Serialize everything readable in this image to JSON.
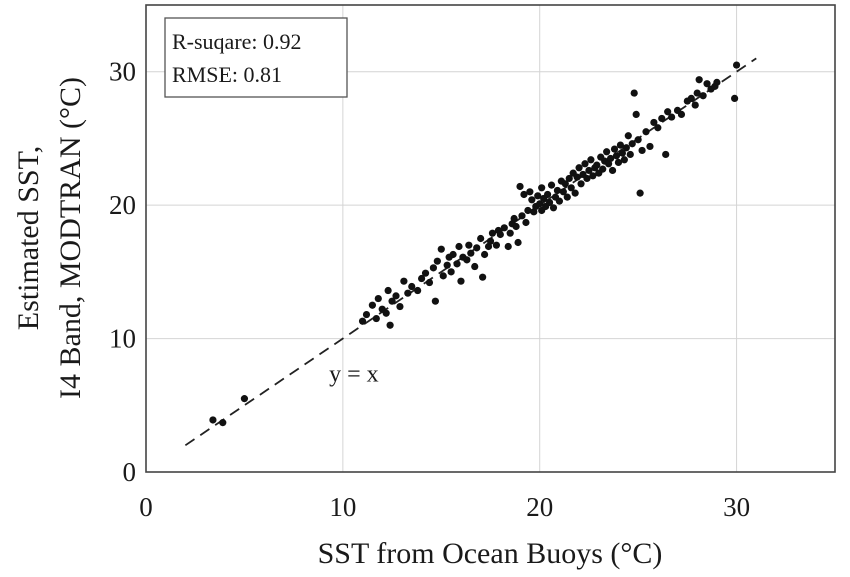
{
  "chart_data": {
    "type": "scatter",
    "xlabel": "SST from Ocean Buoys (°C)",
    "ylabel_lines": [
      "Estimated SST,",
      "I4 Band, MODTRAN (°C)"
    ],
    "xlim": [
      0,
      35
    ],
    "ylim": [
      0,
      35
    ],
    "xticks": [
      "0",
      "10",
      "20",
      "30"
    ],
    "yticks": [
      "0",
      "10",
      "20",
      "30"
    ],
    "xtick_values": [
      0,
      10,
      20,
      30
    ],
    "ytick_values": [
      0,
      10,
      20,
      30
    ],
    "grid": true,
    "stats_box": {
      "placement": "top-left",
      "lines": [
        "R-suqare: 0.92",
        "RMSE: 0.81"
      ]
    },
    "reference_line": {
      "label": "y = x",
      "label_at": [
        9.3,
        6.8
      ],
      "from": [
        2,
        2
      ],
      "to": [
        31,
        31
      ],
      "style": "dashed"
    },
    "marker_color": "#111111",
    "points": [
      [
        3.4,
        3.9
      ],
      [
        3.9,
        3.7
      ],
      [
        5.0,
        5.5
      ],
      [
        11.0,
        11.3
      ],
      [
        11.2,
        11.8
      ],
      [
        11.5,
        12.5
      ],
      [
        11.7,
        11.5
      ],
      [
        11.8,
        13.0
      ],
      [
        12.0,
        12.2
      ],
      [
        12.2,
        11.9
      ],
      [
        12.3,
        13.6
      ],
      [
        12.4,
        11.0
      ],
      [
        12.5,
        12.8
      ],
      [
        12.7,
        13.2
      ],
      [
        12.9,
        12.4
      ],
      [
        13.1,
        14.3
      ],
      [
        13.3,
        13.4
      ],
      [
        13.5,
        13.9
      ],
      [
        13.8,
        13.6
      ],
      [
        14.0,
        14.5
      ],
      [
        14.2,
        14.9
      ],
      [
        14.4,
        14.2
      ],
      [
        14.6,
        15.3
      ],
      [
        14.7,
        12.8
      ],
      [
        14.8,
        15.8
      ],
      [
        15.0,
        16.7
      ],
      [
        15.1,
        14.7
      ],
      [
        15.3,
        15.5
      ],
      [
        15.4,
        16.1
      ],
      [
        15.5,
        15.0
      ],
      [
        15.6,
        16.3
      ],
      [
        15.8,
        15.6
      ],
      [
        15.9,
        16.9
      ],
      [
        16.0,
        14.3
      ],
      [
        16.1,
        16.1
      ],
      [
        16.3,
        15.9
      ],
      [
        16.4,
        17.0
      ],
      [
        16.5,
        16.4
      ],
      [
        16.7,
        15.4
      ],
      [
        16.8,
        16.8
      ],
      [
        17.0,
        17.5
      ],
      [
        17.1,
        14.6
      ],
      [
        17.2,
        16.3
      ],
      [
        17.4,
        16.9
      ],
      [
        17.5,
        17.3
      ],
      [
        17.6,
        17.9
      ],
      [
        17.8,
        17.0
      ],
      [
        17.9,
        18.1
      ],
      [
        18.0,
        17.8
      ],
      [
        18.2,
        18.3
      ],
      [
        18.4,
        16.9
      ],
      [
        18.5,
        17.9
      ],
      [
        18.6,
        18.6
      ],
      [
        18.7,
        19.0
      ],
      [
        18.8,
        18.4
      ],
      [
        18.9,
        17.2
      ],
      [
        19.0,
        21.4
      ],
      [
        19.1,
        19.2
      ],
      [
        19.2,
        20.8
      ],
      [
        19.3,
        18.7
      ],
      [
        19.4,
        19.6
      ],
      [
        19.5,
        21.0
      ],
      [
        19.6,
        20.4
      ],
      [
        19.7,
        19.5
      ],
      [
        19.8,
        19.9
      ],
      [
        19.9,
        20.7
      ],
      [
        20.0,
        20.1
      ],
      [
        20.1,
        19.6
      ],
      [
        20.1,
        21.3
      ],
      [
        20.2,
        20.5
      ],
      [
        20.3,
        19.9
      ],
      [
        20.4,
        20.8
      ],
      [
        20.5,
        20.2
      ],
      [
        20.6,
        21.5
      ],
      [
        20.7,
        19.8
      ],
      [
        20.8,
        20.6
      ],
      [
        20.9,
        21.1
      ],
      [
        21.0,
        20.3
      ],
      [
        21.1,
        21.8
      ],
      [
        21.2,
        21.0
      ],
      [
        21.3,
        21.6
      ],
      [
        21.4,
        20.6
      ],
      [
        21.5,
        22.0
      ],
      [
        21.6,
        21.3
      ],
      [
        21.7,
        22.4
      ],
      [
        21.8,
        20.9
      ],
      [
        21.9,
        22.1
      ],
      [
        22.0,
        22.8
      ],
      [
        22.1,
        21.6
      ],
      [
        22.2,
        22.3
      ],
      [
        22.3,
        23.1
      ],
      [
        22.4,
        22.0
      ],
      [
        22.5,
        22.6
      ],
      [
        22.6,
        23.4
      ],
      [
        22.7,
        22.2
      ],
      [
        22.8,
        22.8
      ],
      [
        22.9,
        23.0
      ],
      [
        23.0,
        22.4
      ],
      [
        23.1,
        23.6
      ],
      [
        23.2,
        22.7
      ],
      [
        23.3,
        23.3
      ],
      [
        23.4,
        24.0
      ],
      [
        23.5,
        23.1
      ],
      [
        23.6,
        23.5
      ],
      [
        23.7,
        22.6
      ],
      [
        23.8,
        24.2
      ],
      [
        23.9,
        23.7
      ],
      [
        24.0,
        23.2
      ],
      [
        24.1,
        24.5
      ],
      [
        24.2,
        23.9
      ],
      [
        24.3,
        23.4
      ],
      [
        24.4,
        24.3
      ],
      [
        24.5,
        25.2
      ],
      [
        24.6,
        23.8
      ],
      [
        24.7,
        24.6
      ],
      [
        24.8,
        28.4
      ],
      [
        24.9,
        26.8
      ],
      [
        25.0,
        24.9
      ],
      [
        25.1,
        20.9
      ],
      [
        25.2,
        24.1
      ],
      [
        25.4,
        25.5
      ],
      [
        25.6,
        24.4
      ],
      [
        25.8,
        26.2
      ],
      [
        26.0,
        25.8
      ],
      [
        26.2,
        26.5
      ],
      [
        26.4,
        23.8
      ],
      [
        26.5,
        27.0
      ],
      [
        26.7,
        26.6
      ],
      [
        27.0,
        27.1
      ],
      [
        27.2,
        26.8
      ],
      [
        27.5,
        27.8
      ],
      [
        27.7,
        28.0
      ],
      [
        27.9,
        27.5
      ],
      [
        28.0,
        28.4
      ],
      [
        28.1,
        29.4
      ],
      [
        28.3,
        28.2
      ],
      [
        28.5,
        29.1
      ],
      [
        28.7,
        28.7
      ],
      [
        28.9,
        28.9
      ],
      [
        29.0,
        29.2
      ],
      [
        29.9,
        28.0
      ],
      [
        30.0,
        30.5
      ]
    ]
  }
}
